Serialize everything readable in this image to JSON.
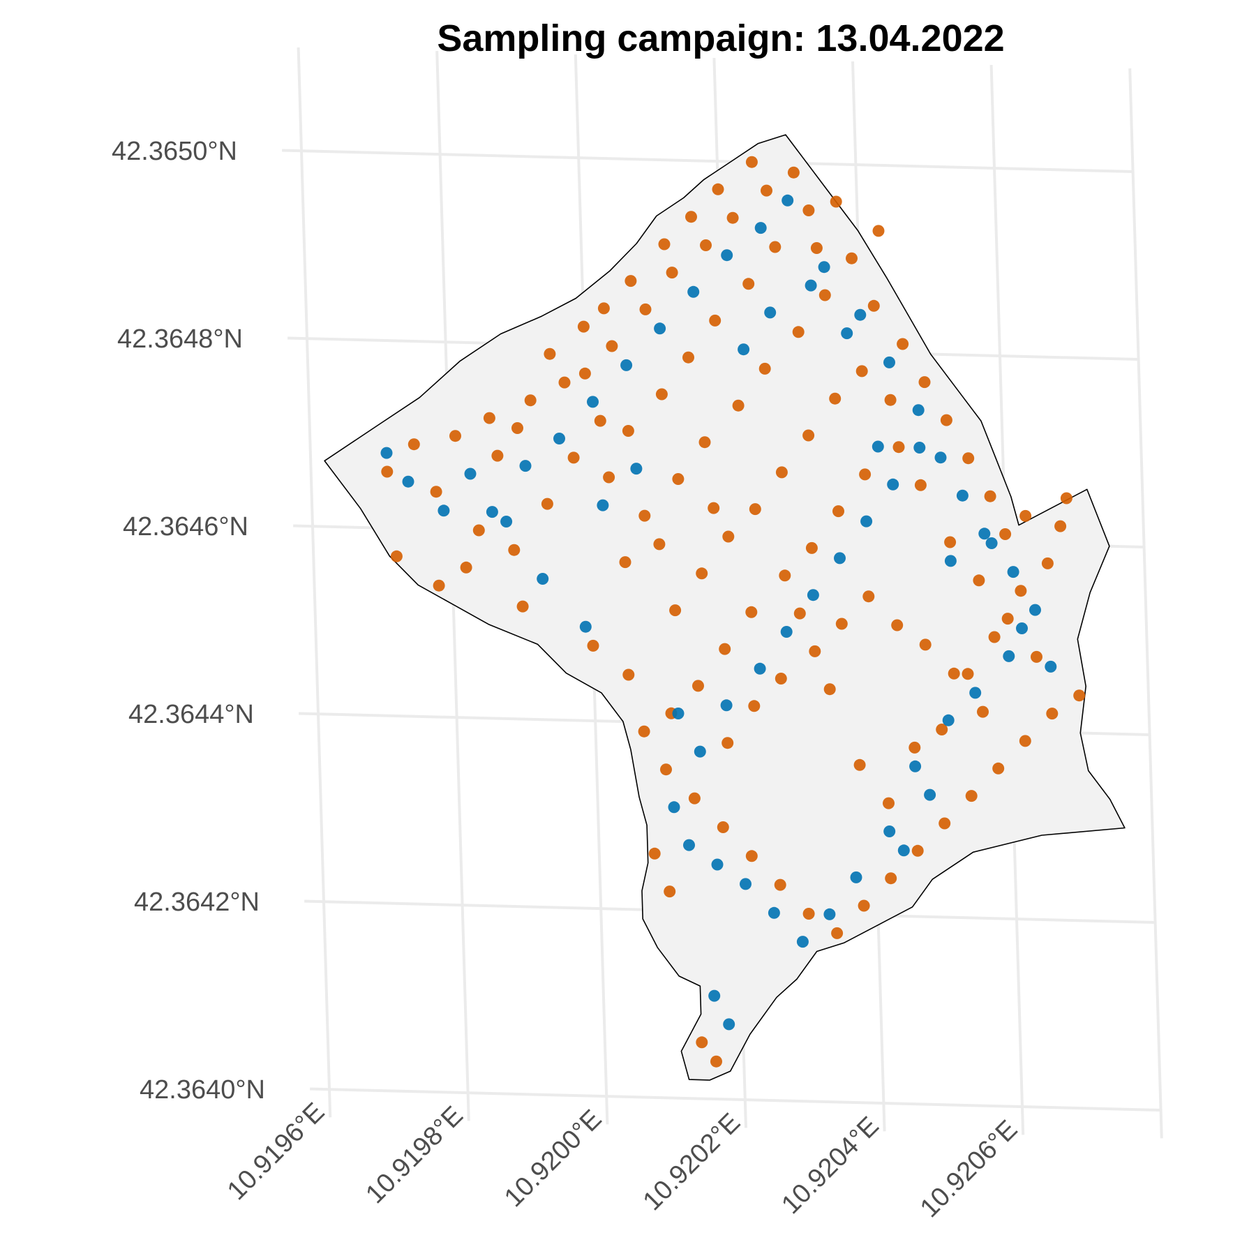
{
  "chart_data": {
    "type": "scatter",
    "title": "Sampling campaign: 13.04.2022",
    "xlabel": "",
    "ylabel": "",
    "grid": true,
    "legend": "none",
    "xlim": [
      10.9196,
      10.9208
    ],
    "ylim": [
      42.364,
      42.3651
    ],
    "x_ticks": [
      {
        "value": 10.9196,
        "label": "10.9196°E"
      },
      {
        "value": 10.9198,
        "label": "10.9198°E"
      },
      {
        "value": 10.92,
        "label": "10.9200°E"
      },
      {
        "value": 10.9202,
        "label": "10.9202°E"
      },
      {
        "value": 10.9204,
        "label": "10.9204°E"
      },
      {
        "value": 10.9206,
        "label": "10.9206°E"
      }
    ],
    "y_ticks": [
      {
        "value": 42.364,
        "label": "42.3640°N"
      },
      {
        "value": 42.3642,
        "label": "42.3642°N"
      },
      {
        "value": 42.3644,
        "label": "42.3644°N"
      },
      {
        "value": 42.3646,
        "label": "42.3646°N"
      },
      {
        "value": 42.3648,
        "label": "42.3648°N"
      },
      {
        "value": 42.365,
        "label": "42.3650°N"
      }
    ],
    "colors": {
      "boundary_fill": "#f2f2f2",
      "boundary_stroke": "#000000",
      "grid": "#ebebeb",
      "series_orange": "#d55e00",
      "series_blue": "#0072b2"
    },
    "boundary": [
      [
        10.91962,
        42.36467
      ],
      [
        10.9197,
        42.36471
      ],
      [
        10.91976,
        42.36474
      ],
      [
        10.91982,
        42.36478
      ],
      [
        10.91988,
        42.36481
      ],
      [
        10.91994,
        42.36483
      ],
      [
        10.91999,
        42.36485
      ],
      [
        10.92004,
        42.36488
      ],
      [
        10.92008,
        42.36491
      ],
      [
        10.92011,
        42.36494
      ],
      [
        10.92015,
        42.36496
      ],
      [
        10.92018,
        42.36498
      ],
      [
        10.92022,
        42.365
      ],
      [
        10.92026,
        42.36502
      ],
      [
        10.9203,
        42.36503
      ],
      [
        10.92035,
        42.36498
      ],
      [
        10.9204,
        42.36493
      ],
      [
        10.92044,
        42.36488
      ],
      [
        10.92047,
        42.36484
      ],
      [
        10.9205,
        42.3648
      ],
      [
        10.92054,
        42.36476
      ],
      [
        10.92057,
        42.36473
      ],
      [
        10.92059,
        42.36469
      ],
      [
        10.92061,
        42.36465
      ],
      [
        10.92062,
        42.36462
      ],
      [
        10.92067,
        42.36464
      ],
      [
        10.92072,
        42.36466
      ],
      [
        10.92075,
        42.3646
      ],
      [
        10.92072,
        42.36455
      ],
      [
        10.9207,
        42.3645
      ],
      [
        10.92071,
        42.36445
      ],
      [
        10.9207,
        42.3644
      ],
      [
        10.92071,
        42.36436
      ],
      [
        10.92074,
        42.36433
      ],
      [
        10.92076,
        42.3643
      ],
      [
        10.92064,
        42.36429
      ],
      [
        10.92054,
        42.36427
      ],
      [
        10.92048,
        42.36424
      ],
      [
        10.92045,
        42.36421
      ],
      [
        10.9204,
        42.36419
      ],
      [
        10.92035,
        42.36417
      ],
      [
        10.92031,
        42.36416
      ],
      [
        10.92028,
        42.36413
      ],
      [
        10.92025,
        42.36411
      ],
      [
        10.92021,
        42.36407
      ],
      [
        10.92018,
        42.36403
      ],
      [
        10.92015,
        42.36402
      ],
      [
        10.92012,
        42.36402
      ],
      [
        10.92011,
        42.36405
      ],
      [
        10.92014,
        42.36409
      ],
      [
        10.92014,
        42.36412
      ],
      [
        10.92011,
        42.36413
      ],
      [
        10.92008,
        42.36416
      ],
      [
        10.92006,
        42.36419
      ],
      [
        10.92006,
        42.36422
      ],
      [
        10.92007,
        42.36425
      ],
      [
        10.92007,
        42.36429
      ],
      [
        10.92006,
        42.36432
      ],
      [
        10.92005,
        42.36437
      ],
      [
        10.92004,
        42.3644
      ],
      [
        10.92001,
        42.36443
      ],
      [
        10.91996,
        42.36445
      ],
      [
        10.91992,
        42.36448
      ],
      [
        10.91985,
        42.3645
      ],
      [
        10.9198,
        42.36452
      ],
      [
        10.91975,
        42.36454
      ],
      [
        10.91971,
        42.36457
      ],
      [
        10.91967,
        42.36462
      ],
      [
        10.91962,
        42.36467
      ]
    ],
    "series": [
      {
        "color": "#d55e00",
        "points": [
          [
            10.91971,
            42.36466
          ],
          [
            10.91975,
            42.36469
          ],
          [
            10.91978,
            42.36464
          ],
          [
            10.91981,
            42.3647
          ],
          [
            10.91986,
            42.36472
          ],
          [
            10.9199,
            42.36471
          ],
          [
            10.91984,
            42.3646
          ],
          [
            10.91989,
            42.36458
          ],
          [
            10.91994,
            42.36463
          ],
          [
            10.91998,
            42.36468
          ],
          [
            10.92002,
            42.36472
          ],
          [
            10.91997,
            42.36476
          ],
          [
            10.92004,
            42.3648
          ],
          [
            10.92009,
            42.36484
          ],
          [
            10.92013,
            42.36488
          ],
          [
            10.92018,
            42.36491
          ],
          [
            10.92022,
            42.36494
          ],
          [
            10.92027,
            42.36497
          ],
          [
            10.92031,
            42.36499
          ],
          [
            10.92033,
            42.36495
          ],
          [
            10.92028,
            42.36491
          ],
          [
            10.92024,
            42.36487
          ],
          [
            10.92019,
            42.36483
          ],
          [
            10.92015,
            42.36479
          ],
          [
            10.92011,
            42.36475
          ],
          [
            10.92006,
            42.36471
          ],
          [
            10.92003,
            42.36466
          ],
          [
            10.92008,
            42.36462
          ],
          [
            10.92013,
            42.36466
          ],
          [
            10.92017,
            42.3647
          ],
          [
            10.92022,
            42.36474
          ],
          [
            10.92026,
            42.36478
          ],
          [
            10.92031,
            42.36482
          ],
          [
            10.92035,
            42.36486
          ],
          [
            10.92039,
            42.3649
          ],
          [
            10.92042,
            42.36485
          ],
          [
            10.92046,
            42.36481
          ],
          [
            10.92049,
            42.36477
          ],
          [
            10.92052,
            42.36473
          ],
          [
            10.92055,
            42.36469
          ],
          [
            10.92058,
            42.36465
          ],
          [
            10.9206,
            42.36461
          ],
          [
            10.92063,
            42.36463
          ],
          [
            10.92069,
            42.36465
          ],
          [
            10.92045,
            42.3647
          ],
          [
            10.9204,
            42.36467
          ],
          [
            10.92036,
            42.36463
          ],
          [
            10.92032,
            42.36459
          ],
          [
            10.92028,
            42.36456
          ],
          [
            10.92023,
            42.36452
          ],
          [
            10.92019,
            42.36448
          ],
          [
            10.92015,
            42.36444
          ],
          [
            10.92011,
            42.36441
          ],
          [
            10.92007,
            42.36439
          ],
          [
            10.9201,
            42.36435
          ],
          [
            10.92014,
            42.36432
          ],
          [
            10.92018,
            42.36429
          ],
          [
            10.92022,
            42.36426
          ],
          [
            10.92026,
            42.36423
          ],
          [
            10.9203,
            42.3642
          ],
          [
            10.92034,
            42.36418
          ],
          [
            10.92038,
            42.36421
          ],
          [
            10.92042,
            42.36424
          ],
          [
            10.92046,
            42.36427
          ],
          [
            10.9205,
            42.3643
          ],
          [
            10.92054,
            42.36433
          ],
          [
            10.92058,
            42.36436
          ],
          [
            10.92062,
            42.36439
          ],
          [
            10.92066,
            42.36442
          ],
          [
            10.9207,
            42.36444
          ],
          [
            10.92056,
            42.36442
          ],
          [
            10.92052,
            42.36446
          ],
          [
            10.92048,
            42.36449
          ],
          [
            10.92044,
            42.36451
          ],
          [
            10.9204,
            42.36454
          ],
          [
            10.92036,
            42.36451
          ],
          [
            10.92032,
            42.36448
          ],
          [
            10.92027,
            42.36445
          ],
          [
            10.92023,
            42.36442
          ],
          [
            10.92019,
            42.36438
          ],
          [
            10.92016,
            42.36404
          ],
          [
            10.92014,
            42.36406
          ],
          [
            10.9201,
            42.36422
          ],
          [
            10.92008,
            42.36426
          ],
          [
            10.91972,
            42.36457
          ],
          [
            10.91978,
            42.36454
          ],
          [
            10.91982,
            42.36456
          ],
          [
            10.9199,
            42.36452
          ],
          [
            10.92,
            42.36448
          ],
          [
            10.92005,
            42.36445
          ],
          [
            10.92012,
            42.36452
          ],
          [
            10.92016,
            42.36456
          ],
          [
            10.9202,
            42.3646
          ],
          [
            10.92024,
            42.36463
          ],
          [
            10.92028,
            42.36467
          ],
          [
            10.92032,
            42.36471
          ],
          [
            10.92036,
            42.36475
          ],
          [
            10.9204,
            42.36478
          ],
          [
            10.92044,
            42.36475
          ],
          [
            10.92048,
            42.36466
          ],
          [
            10.92052,
            42.3646
          ],
          [
            10.92056,
            42.36456
          ],
          [
            10.9206,
            42.36452
          ],
          [
            10.92064,
            42.36448
          ],
          [
            10.92,
            42.36482
          ],
          [
            10.91995,
            42.36479
          ],
          [
            10.91992,
            42.36474
          ],
          [
            10.91987,
            42.36468
          ],
          [
            10.92025,
            42.365
          ],
          [
            10.9202,
            42.36497
          ],
          [
            10.92016,
            42.36494
          ],
          [
            10.92012,
            42.36491
          ],
          [
            10.92007,
            42.36487
          ],
          [
            10.92003,
            42.36484
          ],
          [
            10.92,
            42.36477
          ],
          [
            10.92005,
            42.36457
          ],
          [
            10.9201,
            42.36459
          ],
          [
            10.92018,
            42.36463
          ],
          [
            10.9203,
            42.36452
          ],
          [
            10.92034,
            42.36444
          ],
          [
            10.92038,
            42.36436
          ],
          [
            10.92042,
            42.36432
          ],
          [
            10.92046,
            42.36438
          ],
          [
            10.9205,
            42.3644
          ],
          [
            10.92054,
            42.36446
          ],
          [
            10.92058,
            42.3645
          ],
          [
            10.92062,
            42.36455
          ],
          [
            10.92066,
            42.36458
          ],
          [
            10.92068,
            42.36462
          ],
          [
            10.92043,
            42.36493
          ],
          [
            10.92037,
            42.36496
          ],
          [
            10.92034,
            42.36491
          ]
        ]
      },
      {
        "color": "#0072b2",
        "points": [
          [
            10.91971,
            42.36468
          ],
          [
            10.91974,
            42.36465
          ],
          [
            10.91979,
            42.36462
          ],
          [
            10.91983,
            42.36466
          ],
          [
            10.91986,
            42.36462
          ],
          [
            10.91991,
            42.36467
          ],
          [
            10.91996,
            42.3647
          ],
          [
            10.92001,
            42.36474
          ],
          [
            10.92006,
            42.36478
          ],
          [
            10.92011,
            42.36482
          ],
          [
            10.92016,
            42.36486
          ],
          [
            10.92021,
            42.3649
          ],
          [
            10.92026,
            42.36493
          ],
          [
            10.9203,
            42.36496
          ],
          [
            10.92035,
            42.36489
          ],
          [
            10.9204,
            42.36484
          ],
          [
            10.92044,
            42.36479
          ],
          [
            10.92048,
            42.36474
          ],
          [
            10.92051,
            42.36469
          ],
          [
            10.92054,
            42.36465
          ],
          [
            10.92057,
            42.36461
          ],
          [
            10.92061,
            42.36457
          ],
          [
            10.92064,
            42.36453
          ],
          [
            10.9206,
            42.36448
          ],
          [
            10.92055,
            42.36444
          ],
          [
            10.92051,
            42.36441
          ],
          [
            10.92046,
            42.36436
          ],
          [
            10.92042,
            42.36429
          ],
          [
            10.92037,
            42.36424
          ],
          [
            10.92033,
            42.3642
          ],
          [
            10.92029,
            42.36417
          ],
          [
            10.92025,
            42.3642
          ],
          [
            10.92021,
            42.36423
          ],
          [
            10.92017,
            42.36425
          ],
          [
            10.92013,
            42.36427
          ],
          [
            10.92011,
            42.36431
          ],
          [
            10.92015,
            42.36437
          ],
          [
            10.92019,
            42.36442
          ],
          [
            10.92024,
            42.36446
          ],
          [
            10.92028,
            42.3645
          ],
          [
            10.92032,
            42.36454
          ],
          [
            10.92036,
            42.36458
          ],
          [
            10.9204,
            42.36462
          ],
          [
            10.92044,
            42.36466
          ],
          [
            10.92048,
            42.3647
          ],
          [
            10.92018,
            42.36408
          ],
          [
            10.92016,
            42.36411
          ],
          [
            10.92012,
            42.36441
          ],
          [
            10.91999,
            42.3645
          ],
          [
            10.91993,
            42.36455
          ],
          [
            10.91988,
            42.36461
          ],
          [
            10.92002,
            42.36463
          ],
          [
            10.92007,
            42.36467
          ],
          [
            10.92023,
            42.3648
          ],
          [
            10.92027,
            42.36484
          ],
          [
            10.92033,
            42.36487
          ],
          [
            10.92038,
            42.36482
          ],
          [
            10.92042,
            42.3647
          ],
          [
            10.92052,
            42.36458
          ],
          [
            10.92058,
            42.3646
          ],
          [
            10.92062,
            42.36451
          ],
          [
            10.92066,
            42.36447
          ],
          [
            10.92048,
            42.36433
          ],
          [
            10.92044,
            42.36427
          ]
        ]
      }
    ]
  }
}
